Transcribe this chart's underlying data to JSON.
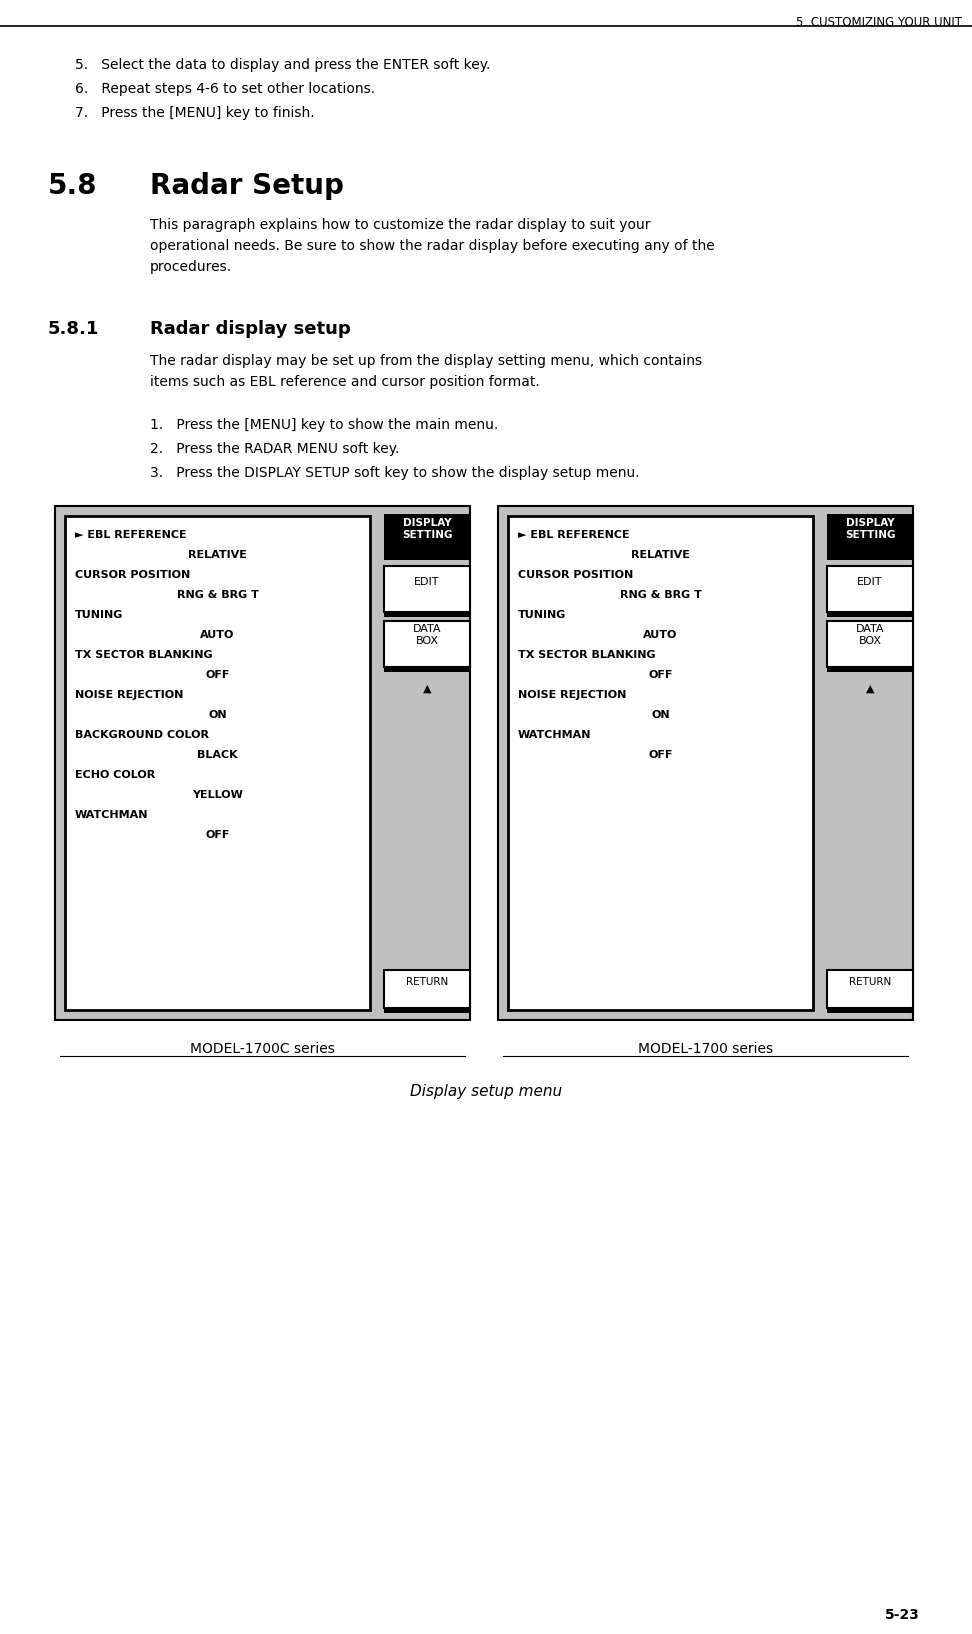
{
  "page_header": "5. CUSTOMIZING YOUR UNIT",
  "page_number": "5-23",
  "bg_color": "#ffffff",
  "steps_top": [
    "5.   Select the data to display and press the ENTER soft key.",
    "6.   Repeat steps 4-6 to set other locations.",
    "7.   Press the [MENU] key to finish."
  ],
  "section_58_num": "5.8",
  "section_58_title": "Radar Setup",
  "section_58_body_lines": [
    "This paragraph explains how to customize the radar display to suit your",
    "operational needs. Be sure to show the radar display before executing any of the",
    "procedures."
  ],
  "section_581_num": "5.8.1",
  "section_581_title": "Radar display setup",
  "section_581_body_lines": [
    "The radar display may be set up from the display setting menu, which contains",
    "items such as EBL reference and cursor position format."
  ],
  "steps_main": [
    "1.   Press the [MENU] key to show the main menu.",
    "2.   Press the RADAR MENU soft key.",
    "3.   Press the DISPLAY SETUP soft key to show the display setup menu."
  ],
  "menu_left_lines": [
    [
      "► EBL REFERENCE",
      false
    ],
    [
      "RELATIVE",
      true
    ],
    [
      "CURSOR POSITION",
      false
    ],
    [
      "RNG & BRG T",
      true
    ],
    [
      "TUNING",
      false
    ],
    [
      "AUTO",
      true
    ],
    [
      "TX SECTOR BLANKING",
      false
    ],
    [
      "OFF",
      true
    ],
    [
      "NOISE REJECTION",
      false
    ],
    [
      "ON",
      true
    ],
    [
      "BACKGROUND COLOR",
      false
    ],
    [
      "BLACK",
      true
    ],
    [
      "ECHO COLOR",
      false
    ],
    [
      "YELLOW",
      true
    ],
    [
      "WATCHMAN",
      false
    ],
    [
      "OFF",
      true
    ]
  ],
  "menu_right_lines": [
    [
      "► EBL REFERENCE",
      false
    ],
    [
      "RELATIVE",
      true
    ],
    [
      "CURSOR POSITION",
      false
    ],
    [
      "RNG & BRG T",
      true
    ],
    [
      "TUNING",
      false
    ],
    [
      "AUTO",
      true
    ],
    [
      "TX SECTOR BLANKING",
      false
    ],
    [
      "OFF",
      true
    ],
    [
      "NOISE REJECTION",
      false
    ],
    [
      "ON",
      true
    ],
    [
      "WATCHMAN",
      false
    ],
    [
      "OFF",
      true
    ]
  ],
  "label_left": "MODEL-1700C series",
  "label_right": "MODEL-1700 series",
  "caption": "Display setup menu",
  "menu_bg": "#c0c0c0",
  "menu_inner_bg": "#ffffff",
  "black_bg": "#000000",
  "white_bg": "#ffffff"
}
